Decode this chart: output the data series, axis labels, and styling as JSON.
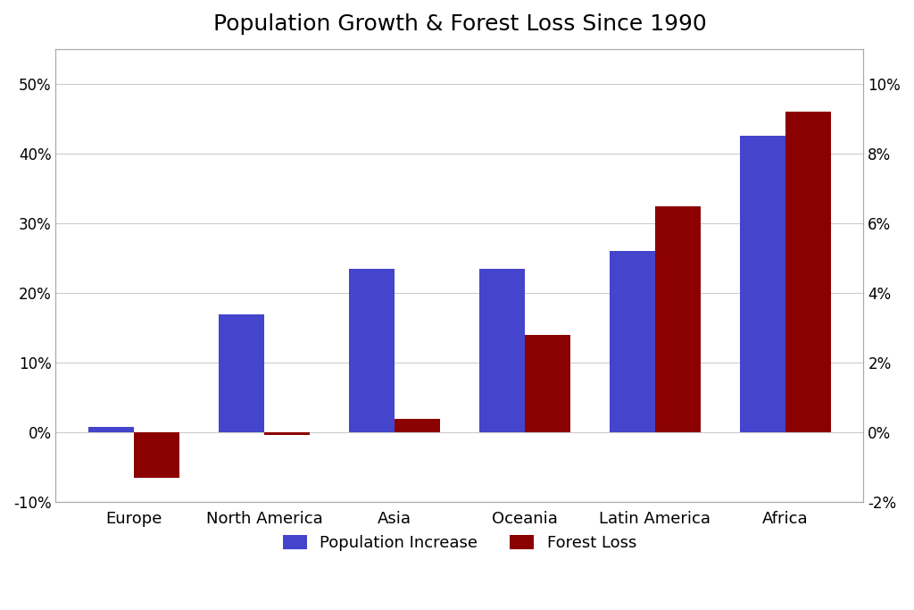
{
  "title": "Population Growth & Forest Loss Since 1990",
  "categories": [
    "Europe",
    "North America",
    "Asia",
    "Oceania",
    "Latin America",
    "Africa"
  ],
  "population_increase": [
    0.8,
    17.0,
    23.5,
    23.5,
    26.0,
    42.5
  ],
  "forest_loss": [
    -1.3,
    -0.06,
    0.4,
    2.8,
    6.5,
    9.2
  ],
  "pop_color": "#4444CC",
  "forest_color": "#8B0000",
  "left_ylim": [
    -10,
    55
  ],
  "right_ylim": [
    -2,
    11
  ],
  "left_yticks": [
    -10,
    0,
    10,
    20,
    30,
    40,
    50
  ],
  "right_yticks": [
    -2,
    0,
    2,
    4,
    6,
    8,
    10
  ],
  "background_color": "#FFFFFF",
  "bar_width": 0.35,
  "title_fontsize": 18,
  "legend_labels": [
    "Population Increase",
    "Forest Loss"
  ],
  "grid_color": "#CCCCCC"
}
